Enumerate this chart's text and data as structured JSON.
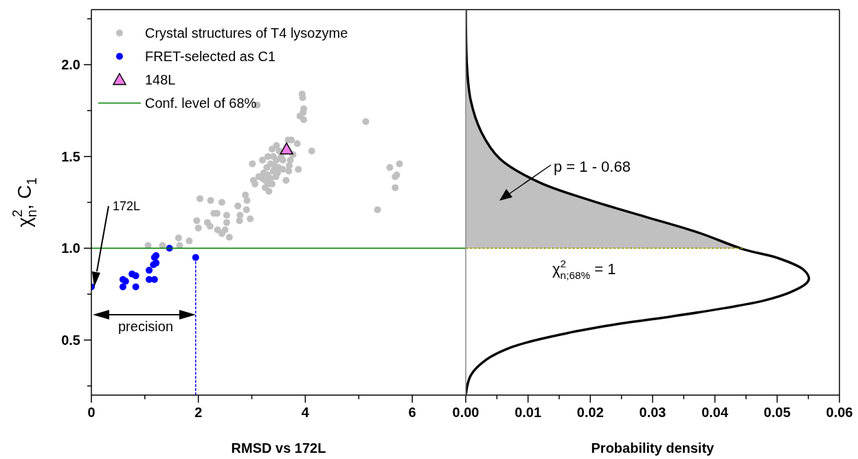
{
  "chart_data": [
    {
      "type": "scatter",
      "xlabel": "RMSD vs 172L",
      "ylabel": "χ$^{2}$$_{n}$, C$_{1}$",
      "xlim": [
        0,
        7
      ],
      "ylim": [
        0.2,
        2.3
      ],
      "xticks": [
        0,
        {
          "value": 1,
          "label": null
        },
        2,
        {
          "value": 3,
          "label": null
        },
        4,
        {
          "value": 5,
          "label": null
        },
        6
      ],
      "yticks": [
        {
          "value": 0.25,
          "label": null
        },
        {
          "value": 0.5,
          "label": "0.5"
        },
        {
          "value": 0.75,
          "label": null
        },
        {
          "value": 1,
          "label": "1.0"
        },
        {
          "value": 1.25,
          "label": null
        },
        {
          "value": 1.5,
          "label": "1.5"
        },
        {
          "value": 1.75,
          "label": null
        },
        {
          "value": 2,
          "label": "2.0"
        },
        {
          "value": 2.25,
          "label": null
        }
      ],
      "legend": "top left",
      "grid": false,
      "series": [
        {
          "name": "Crystal structures of T4 lysozyme",
          "color": "#c0c0c0",
          "marker": "circle",
          "x": [
            1.06,
            1.33,
            1.65,
            1.63,
            1.83,
            1.97,
            2.0,
            2.03,
            2.23,
            2.17,
            2.22,
            2.29,
            2.35,
            2.44,
            2.53,
            2.53,
            2.36,
            2.44,
            2.5,
            2.58,
            2.74,
            2.78,
            2.77,
            2.88,
            2.91,
            2.9,
            2.97,
            3.01,
            3.03,
            3.06,
            3.13,
            3.38,
            3.51,
            3.2,
            3.3,
            3.46,
            3.58,
            3.58,
            3.64,
            3.68,
            3.74,
            3.72,
            3.7,
            3.69,
            3.85,
            3.77,
            3.87,
            4.12,
            3.94,
            3.95,
            3.97,
            3.96,
            3.9,
            3.97,
            3.1,
            3.46,
            3.25,
            3.3,
            3.35,
            3.3,
            3.4,
            3.28,
            3.35,
            3.42,
            3.38,
            3.45,
            3.22,
            3.32,
            3.48,
            3.5,
            3.4,
            3.55,
            3.25,
            3.2,
            5.13,
            5.58,
            5.76,
            5.71,
            5.68,
            5.68,
            5.35
          ],
          "values": [
            1.015,
            1.015,
            1.015,
            1.056,
            1.04,
            1.15,
            1.11,
            1.27,
            1.26,
            1.14,
            1.12,
            1.19,
            1.19,
            1.25,
            1.18,
            1.14,
            1.1,
            1.08,
            1.1,
            1.06,
            1.23,
            1.18,
            1.15,
            1.29,
            1.26,
            1.21,
            1.16,
            1.46,
            1.37,
            1.35,
            1.39,
            1.54,
            1.53,
            1.48,
            1.5,
            1.48,
            1.48,
            1.43,
            1.37,
            1.59,
            1.59,
            1.48,
            1.45,
            1.42,
            1.57,
            1.51,
            1.43,
            1.53,
            1.84,
            1.82,
            1.76,
            1.74,
            1.72,
            1.7,
            1.78,
            1.56,
            1.33,
            1.35,
            1.38,
            1.4,
            1.42,
            1.44,
            1.46,
            1.45,
            1.35,
            1.39,
            1.41,
            1.31,
            1.41,
            1.44,
            1.5,
            1.5,
            1.37,
            1.38,
            1.69,
            1.44,
            1.46,
            1.4,
            1.39,
            1.33,
            1.21
          ]
        },
        {
          "name": "FRET-selected as C1",
          "color": "#0000ff",
          "marker": "circle",
          "x": [
            0,
            0.59,
            0.59,
            0.64,
            0.76,
            0.83,
            0.83,
            1.08,
            1.08,
            1.18,
            1.16,
            1.21,
            1.18,
            1.21,
            1.46,
            1.95
          ],
          "values": [
            0.79,
            0.83,
            0.79,
            0.82,
            0.86,
            0.85,
            0.79,
            0.88,
            0.83,
            0.83,
            0.91,
            0.92,
            0.95,
            0.96,
            1.0,
            0.95
          ]
        },
        {
          "name": "148L",
          "color": "#f07ce6",
          "marker": "triangle",
          "x": [
            3.65
          ],
          "values": [
            1.54
          ]
        },
        {
          "type": "line",
          "name": "Conf. level of 68%",
          "color": "#008000",
          "line_style": "solid",
          "marker": "none",
          "x": [
            0,
            7
          ],
          "values": [
            1,
            1
          ]
        },
        {
          "type": "line",
          "color": "#0000ff",
          "line_style": "dashed",
          "marker": "none",
          "x": [
            1.95,
            1.95
          ],
          "values": [
            0.95,
            0.2
          ]
        }
      ],
      "annotations": [
        "172L",
        "precision"
      ]
    },
    {
      "type": "line",
      "xlabel": "Probability density",
      "xlim": [
        0,
        0.06
      ],
      "ylim": [
        0.2,
        2.3
      ],
      "xticks": [
        {
          "value": 0,
          "label": "0.00"
        },
        {
          "value": 0.005,
          "label": null
        },
        0.01,
        {
          "value": 0.015,
          "label": null
        },
        0.02,
        {
          "value": 0.025,
          "label": null
        },
        0.03,
        {
          "value": 0.035,
          "label": null
        },
        0.04,
        {
          "value": 0.045,
          "label": null
        },
        0.05,
        {
          "value": 0.055,
          "label": null
        },
        0.06
      ],
      "tick_labels": "x",
      "grid": false,
      "legend": false,
      "series": [
        {
          "type": "area",
          "color": "#c0c0c0",
          "x": [
            0.0445,
            0.0373,
            0.0288,
            0.0203,
            0.0118,
            0.0055,
            0.0025,
            0.0008,
            0.0002,
            0
          ],
          "values": [
            1.0,
            1.086,
            1.172,
            1.258,
            1.359,
            1.487,
            1.633,
            1.805,
            1.99,
            2.3
          ]
        },
        {
          "color": "#000000",
          "line_style": "solid",
          "marker": "none",
          "x": [
            0,
            0.0008,
            0.0033,
            0.0076,
            0.0161,
            0.0246,
            0.0331,
            0.0416,
            0.0479,
            0.0521,
            0.0547,
            0.0551,
            0.0542,
            0.05,
            0.0447,
            0.0373,
            0.0288,
            0.0203,
            0.0118,
            0.0055,
            0.0025,
            0.0008,
            0.0002,
            0
          ],
          "values": [
            0.2,
            0.307,
            0.393,
            0.464,
            0.536,
            0.588,
            0.629,
            0.674,
            0.715,
            0.76,
            0.809,
            0.835,
            0.884,
            0.948,
            0.993,
            1.086,
            1.172,
            1.258,
            1.359,
            1.487,
            1.633,
            1.805,
            1.99,
            2.3
          ]
        },
        {
          "color": "#9a9a00",
          "line_style": "dashed",
          "marker": "none",
          "x": [
            0,
            0.0445
          ],
          "values": [
            1,
            1
          ]
        }
      ],
      "annotations": [
        "p = 1 - 0.68",
        {
          "text": "χ$^{2}$$_{n;68%}$ = 1",
          "x": 0.019,
          "y": 1.0
        }
      ]
    }
  ]
}
